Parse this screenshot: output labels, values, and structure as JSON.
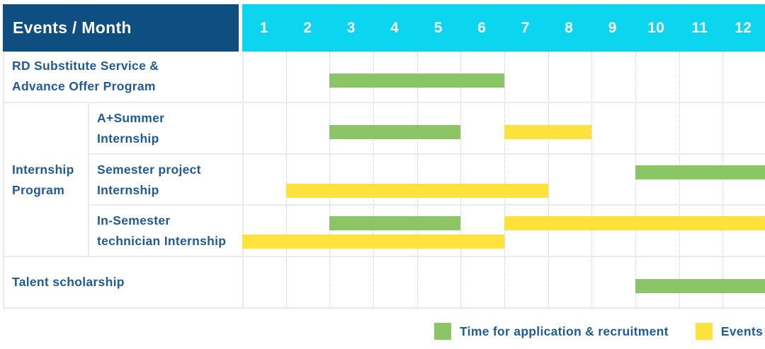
{
  "header": {
    "label": "Events / Month",
    "months": [
      "1",
      "2",
      "3",
      "4",
      "5",
      "6",
      "7",
      "8",
      "9",
      "10",
      "11",
      "12"
    ]
  },
  "colors": {
    "header_bg": "#0f4e80",
    "months_bg": "#0bd5ef",
    "green": "#8bc566",
    "yellow": "#ffe33c",
    "text_blue": "#1f5a99",
    "grid": "#ebebeb",
    "grid_dotted": "#d2d2d2"
  },
  "group": {
    "label_lines": [
      "Internship",
      "Program"
    ],
    "row_start": 1,
    "row_count": 3
  },
  "rows": [
    {
      "id": "rd-substitute-advance-offer",
      "in_group": false,
      "label_lines": [
        "RD Substitute Service &",
        "Advance Offer Program"
      ],
      "bars": [
        {
          "kind": "application",
          "start": 3,
          "end": 6,
          "lane": "single"
        }
      ]
    },
    {
      "id": "a-plus-summer-internship",
      "in_group": true,
      "label_lines": [
        "A+Summer",
        "Internship"
      ],
      "bars": [
        {
          "kind": "application",
          "start": 3,
          "end": 5,
          "lane": "single"
        },
        {
          "kind": "event",
          "start": 7,
          "end": 8,
          "lane": "single"
        }
      ]
    },
    {
      "id": "semester-project-internship",
      "in_group": true,
      "label_lines": [
        "Semester project",
        "Internship"
      ],
      "bars": [
        {
          "kind": "application",
          "start": 10,
          "end": 12,
          "lane": "upper"
        },
        {
          "kind": "event",
          "start": 2,
          "end": 7,
          "lane": "lower"
        }
      ]
    },
    {
      "id": "in-semester-technician-internship",
      "in_group": true,
      "label_lines": [
        "In-Semester",
        "technician Internship"
      ],
      "bars": [
        {
          "kind": "application",
          "start": 3,
          "end": 5,
          "lane": "upper"
        },
        {
          "kind": "event",
          "start": 7,
          "end": 12,
          "lane": "upper"
        },
        {
          "kind": "event",
          "start": 1,
          "end": 6,
          "lane": "lower"
        }
      ]
    },
    {
      "id": "talent-scholarship",
      "in_group": false,
      "label_lines": [
        "Talent scholarship"
      ],
      "bars": [
        {
          "kind": "application",
          "start": 10,
          "end": 12,
          "lane": "single"
        }
      ]
    }
  ],
  "legend": [
    {
      "kind": "application",
      "label": "Time for application & recruitment"
    },
    {
      "kind": "event",
      "label": "Events"
    }
  ],
  "chart_data": {
    "type": "gantt",
    "title": "Events / Month",
    "x_axis": {
      "label": "Month",
      "ticks": [
        1,
        2,
        3,
        4,
        5,
        6,
        7,
        8,
        9,
        10,
        11,
        12
      ],
      "range": [
        1,
        12
      ],
      "gridlines": "dotted vertical per month"
    },
    "legend_entries": [
      {
        "label": "Time for application & recruitment",
        "color": "#8bc566"
      },
      {
        "label": "Events",
        "color": "#ffe33c"
      }
    ],
    "legend_position": "bottom-right",
    "tasks": [
      {
        "name": "RD Substitute Service & Advance Offer Program",
        "group": null,
        "spans": [
          {
            "kind": "Time for application & recruitment",
            "months_inclusive": [
              3,
              6
            ]
          }
        ]
      },
      {
        "name": "A+Summer Internship",
        "group": "Internship Program",
        "spans": [
          {
            "kind": "Time for application & recruitment",
            "months_inclusive": [
              3,
              5
            ]
          },
          {
            "kind": "Events",
            "months_inclusive": [
              7,
              8
            ]
          }
        ]
      },
      {
        "name": "Semester project Internship",
        "group": "Internship Program",
        "spans": [
          {
            "kind": "Time for application & recruitment",
            "months_inclusive": [
              10,
              12
            ]
          },
          {
            "kind": "Events",
            "months_inclusive": [
              2,
              7
            ]
          }
        ]
      },
      {
        "name": "In-Semester technician Internship",
        "group": "Internship Program",
        "spans": [
          {
            "kind": "Time for application & recruitment",
            "months_inclusive": [
              3,
              5
            ]
          },
          {
            "kind": "Events",
            "months_inclusive": [
              7,
              12
            ]
          },
          {
            "kind": "Events",
            "months_inclusive": [
              1,
              6
            ]
          }
        ]
      },
      {
        "name": "Talent scholarship",
        "group": null,
        "spans": [
          {
            "kind": "Time for application & recruitment",
            "months_inclusive": [
              10,
              12
            ]
          }
        ]
      }
    ]
  }
}
